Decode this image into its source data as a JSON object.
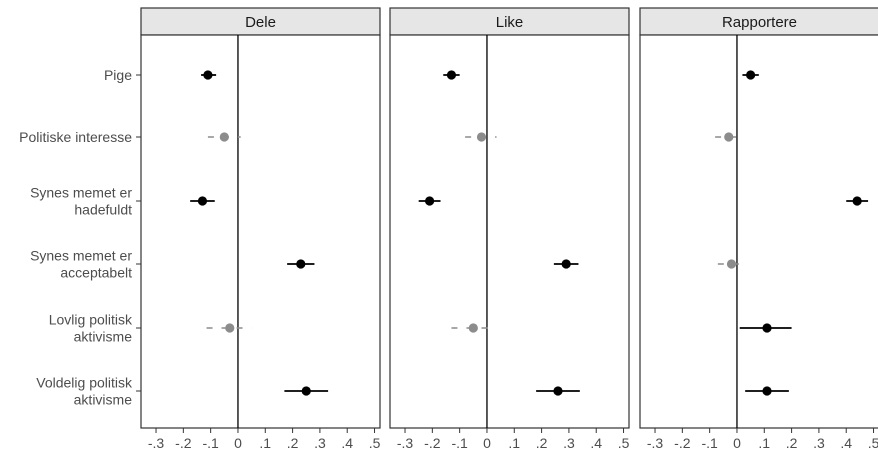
{
  "chart_data": {
    "type": "scatter",
    "subtype": "coefficient-plot",
    "panels": [
      "Dele",
      "Like",
      "Rapportere"
    ],
    "rows": [
      "Pige",
      "Politiske interesse",
      "Synes memet er hadefuldt",
      "Synes memet er acceptabelt",
      "Lovlig politisk aktivisme",
      "Voldelig politisk aktivisme"
    ],
    "row_label_lines": [
      [
        "Pige"
      ],
      [
        "Politiske interesse"
      ],
      [
        "Synes memet er",
        "hadefuldt"
      ],
      [
        "Synes memet er",
        "acceptabelt"
      ],
      [
        "Lovlig politisk",
        "aktivisme"
      ],
      [
        "Voldelig politisk",
        "aktivisme"
      ]
    ],
    "x_ticks": [
      -0.3,
      -0.2,
      -0.1,
      0,
      0.1,
      0.2,
      0.3,
      0.4,
      0.5
    ],
    "x_tick_labels": [
      "-.3",
      "-.2",
      "-.1",
      "0",
      ".1",
      ".2",
      ".3",
      ".4",
      ".5"
    ],
    "xlim": [
      -0.355,
      0.52
    ],
    "reference_line": 0,
    "significance_colors": {
      "significant": "#000000",
      "not_significant": "#8c8c8c"
    },
    "series": [
      {
        "panel": "Dele",
        "estimates": [
          -0.11,
          -0.05,
          -0.13,
          0.23,
          -0.03,
          0.25
        ],
        "ci_low": [
          -0.135,
          -0.11,
          -0.175,
          0.18,
          -0.115,
          0.17
        ],
        "ci_high": [
          -0.08,
          0.01,
          -0.085,
          0.28,
          0.05,
          0.33
        ],
        "significant": [
          true,
          false,
          true,
          true,
          false,
          true
        ]
      },
      {
        "panel": "Like",
        "estimates": [
          -0.13,
          -0.02,
          -0.21,
          0.29,
          -0.05,
          0.26
        ],
        "ci_low": [
          -0.16,
          -0.08,
          -0.25,
          0.245,
          -0.13,
          0.18
        ],
        "ci_high": [
          -0.1,
          0.035,
          -0.17,
          0.335,
          0.03,
          0.34
        ],
        "significant": [
          true,
          false,
          true,
          true,
          false,
          true
        ]
      },
      {
        "panel": "Rapportere",
        "estimates": [
          0.05,
          -0.03,
          0.44,
          -0.02,
          0.11,
          0.11
        ],
        "ci_low": [
          0.02,
          -0.08,
          0.4,
          -0.07,
          0.01,
          0.03
        ],
        "ci_high": [
          0.08,
          0.02,
          0.48,
          0.03,
          0.2,
          0.19
        ],
        "significant": [
          true,
          false,
          true,
          false,
          true,
          true
        ]
      }
    ]
  }
}
